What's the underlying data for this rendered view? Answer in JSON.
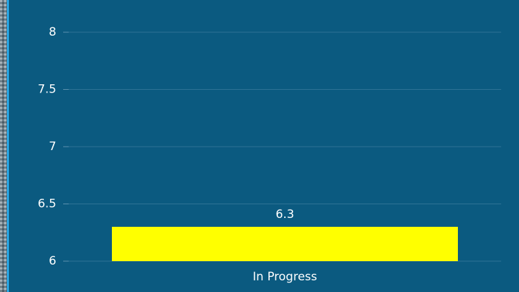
{
  "chart_data": {
    "type": "bar",
    "categories": [
      "In Progress"
    ],
    "values": [
      6.3
    ],
    "color": "#ffff00",
    "ylim": [
      6,
      8
    ],
    "yticks": [
      6,
      6.5,
      7,
      7.5,
      8
    ],
    "grid": true
  }
}
